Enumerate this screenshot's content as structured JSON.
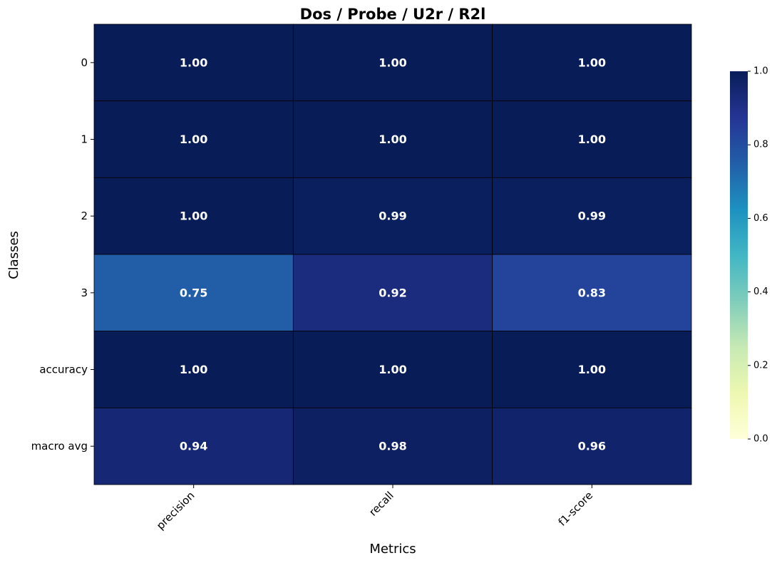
{
  "chart_data": {
    "type": "heatmap",
    "title": "Dos / Probe / U2r / R2l",
    "xlabel": "Metrics",
    "ylabel": "Classes",
    "columns": [
      "precision",
      "recall",
      "f1-score"
    ],
    "rows": [
      "0",
      "1",
      "2",
      "3",
      "accuracy",
      "macro avg"
    ],
    "values": [
      [
        1.0,
        1.0,
        1.0
      ],
      [
        1.0,
        1.0,
        1.0
      ],
      [
        1.0,
        0.99,
        0.99
      ],
      [
        0.75,
        0.92,
        0.83
      ],
      [
        1.0,
        1.0,
        1.0
      ],
      [
        0.94,
        0.98,
        0.96
      ]
    ],
    "value_format": "2 decimals",
    "colormap": "YlGnBu",
    "vmin": 0.0,
    "vmax": 1.0,
    "colorbar": {
      "ticks": [
        "0.0",
        "0.2",
        "0.4",
        "0.6",
        "0.8",
        "1.0"
      ],
      "placement": "right"
    },
    "cell_border_color": "#000000"
  }
}
